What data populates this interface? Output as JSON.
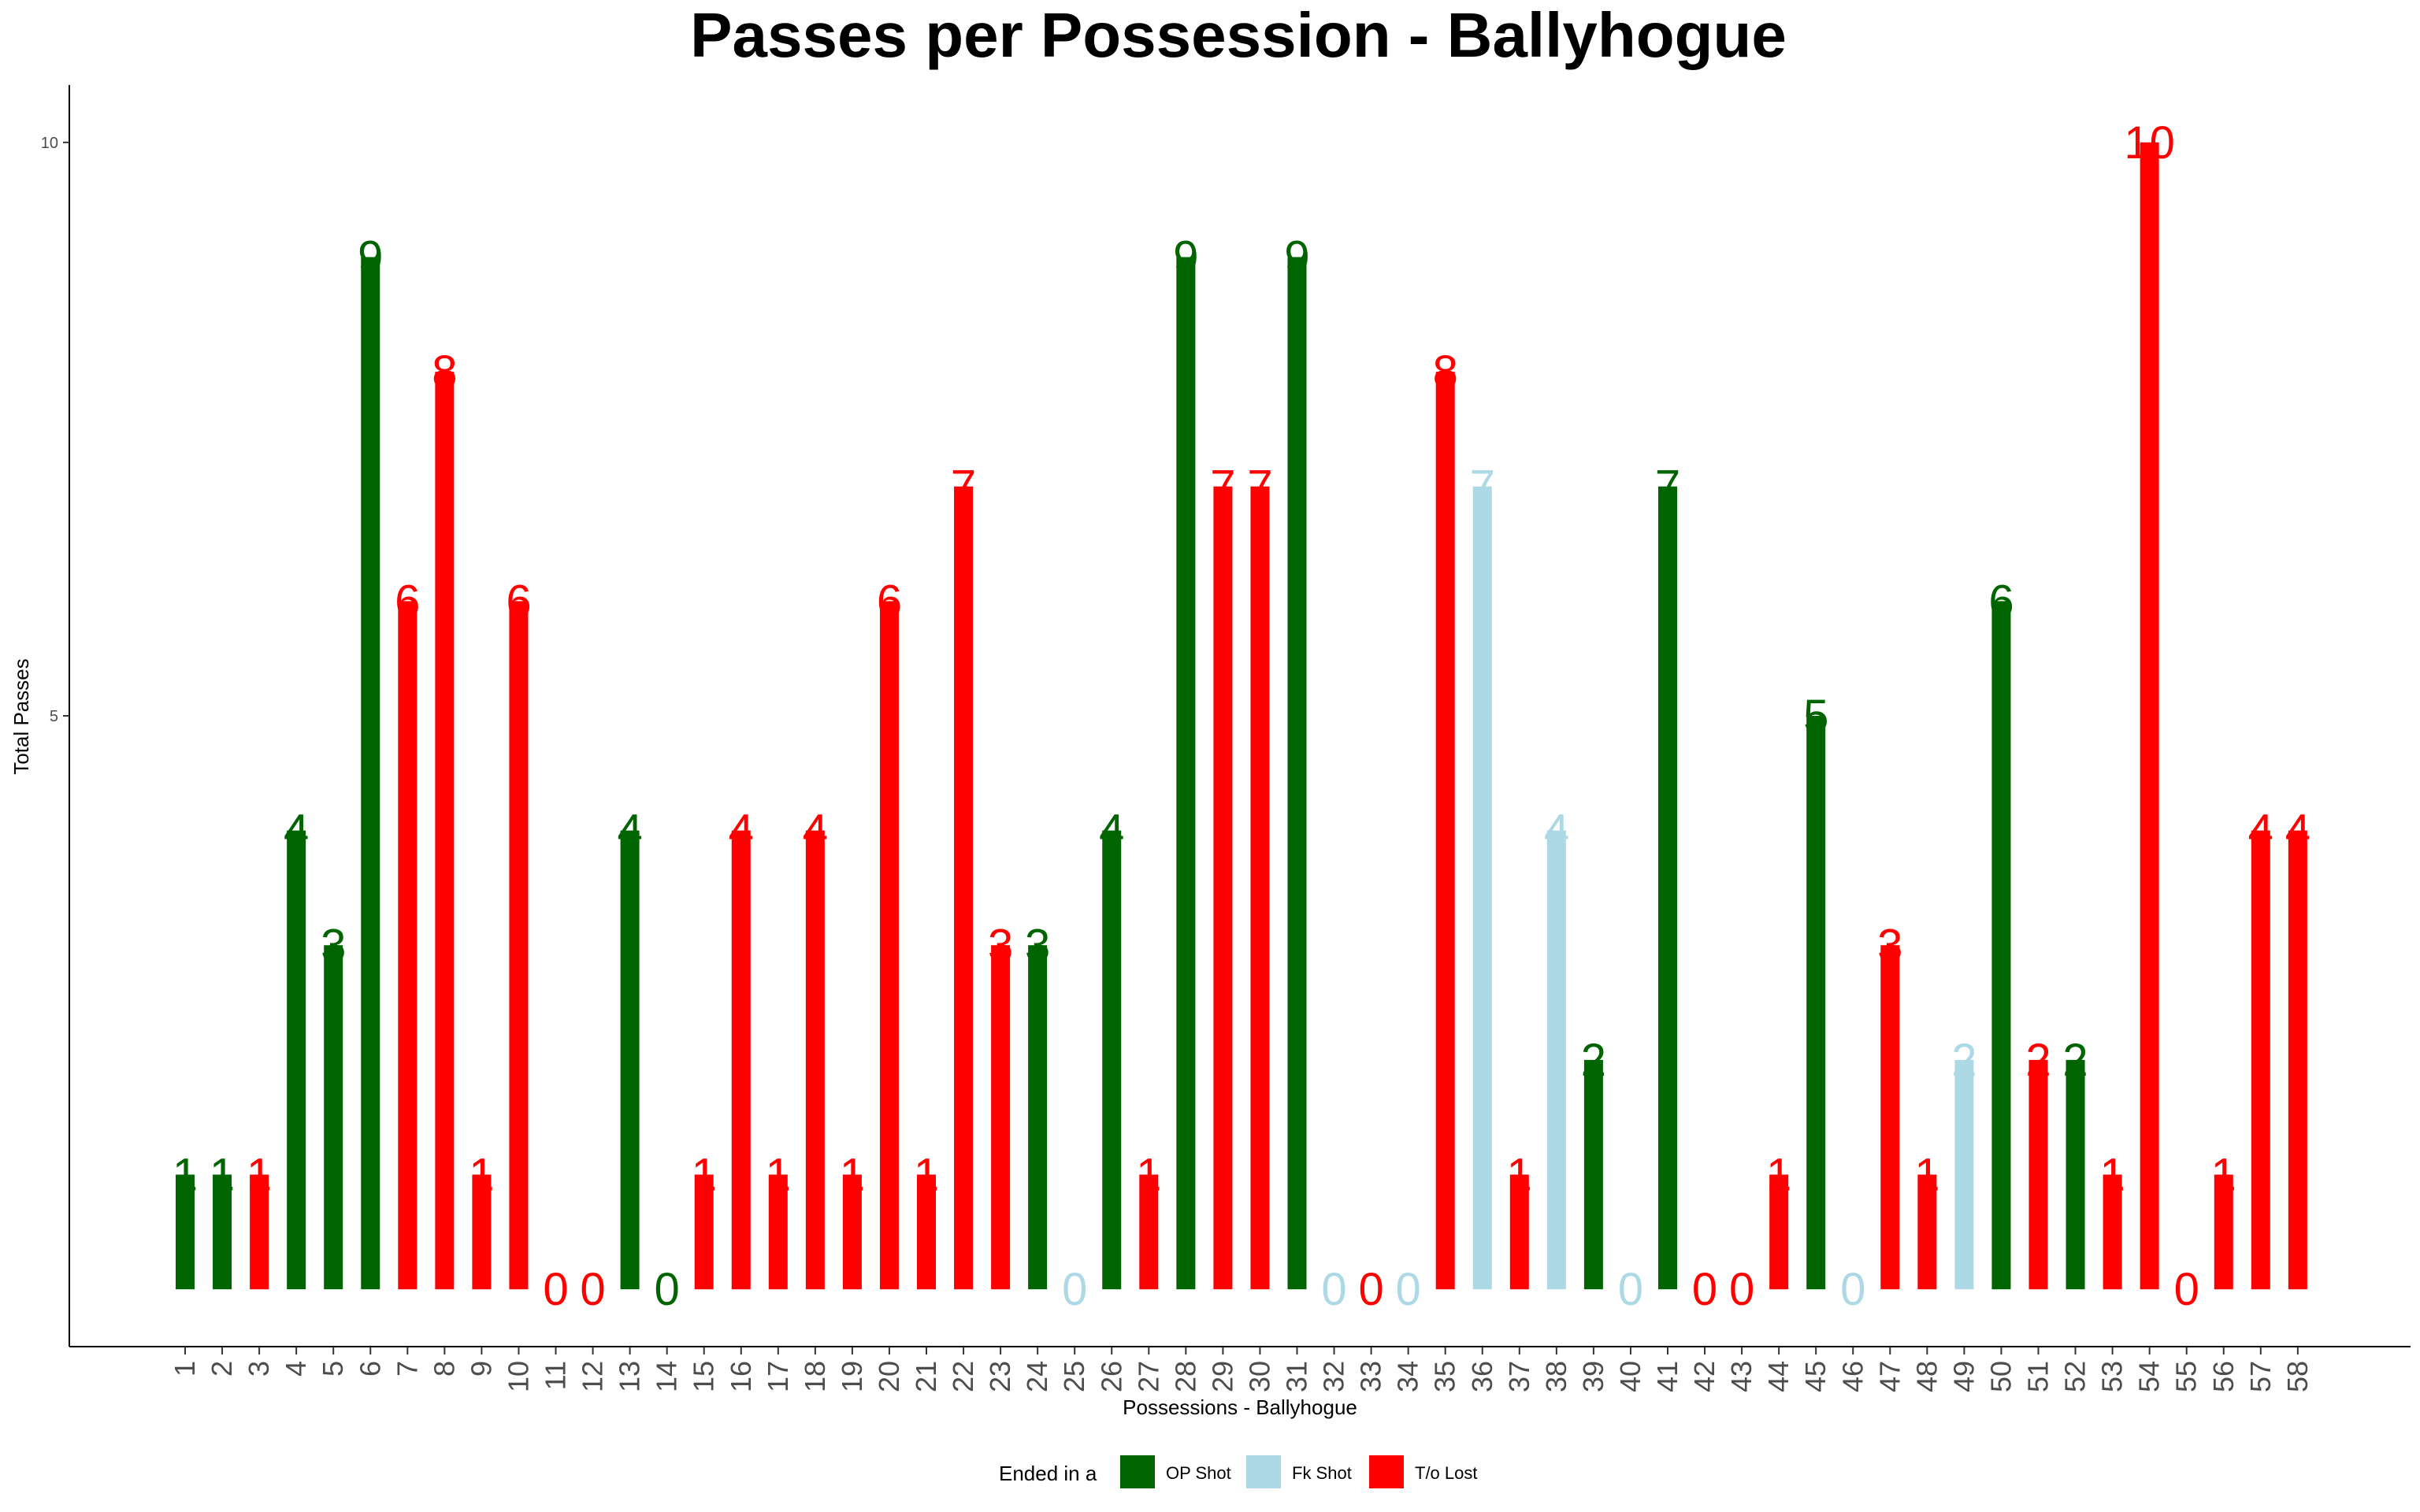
{
  "chart_data": {
    "type": "bar",
    "title": "Passes per Possession - Ballyhogue",
    "xlabel": "Possessions - Ballyhogue",
    "ylabel": "Total Passes",
    "ylim": [
      -0.5,
      10.5
    ],
    "yticks": [
      5,
      10
    ],
    "grid": false,
    "legend": {
      "title": "Ended in a",
      "placement": "bottom",
      "entries": [
        {
          "key": "op",
          "label": "OP Shot",
          "color": "#006400"
        },
        {
          "key": "fk",
          "label": "Fk Shot",
          "color": "#ADD8E6"
        },
        {
          "key": "to",
          "label": "T/o Lost",
          "color": "#FF0000"
        }
      ]
    },
    "categories": [
      "1",
      "2",
      "3",
      "4",
      "5",
      "6",
      "7",
      "8",
      "9",
      "10",
      "11",
      "12",
      "13",
      "14",
      "15",
      "16",
      "17",
      "18",
      "19",
      "20",
      "21",
      "22",
      "23",
      "24",
      "25",
      "26",
      "27",
      "28",
      "29",
      "30",
      "31",
      "32",
      "33",
      "34",
      "35",
      "36",
      "37",
      "38",
      "39",
      "40",
      "41",
      "42",
      "43",
      "44",
      "45",
      "46",
      "47",
      "48",
      "49",
      "50",
      "51",
      "52",
      "53",
      "54",
      "55",
      "56",
      "57",
      "58"
    ],
    "values": [
      1,
      1,
      1,
      4,
      3,
      9,
      6,
      8,
      1,
      6,
      0,
      0,
      4,
      0,
      1,
      4,
      1,
      4,
      1,
      6,
      1,
      7,
      3,
      3,
      0,
      4,
      1,
      9,
      7,
      7,
      9,
      0,
      0,
      0,
      8,
      7,
      1,
      4,
      2,
      0,
      7,
      0,
      0,
      1,
      5,
      0,
      3,
      1,
      2,
      6,
      2,
      2,
      1,
      10,
      0,
      1,
      4,
      4
    ],
    "outcomes": [
      "op",
      "op",
      "to",
      "op",
      "op",
      "op",
      "to",
      "to",
      "to",
      "to",
      "to",
      "to",
      "op",
      "op",
      "to",
      "to",
      "to",
      "to",
      "to",
      "to",
      "to",
      "to",
      "to",
      "op",
      "fk",
      "op",
      "to",
      "op",
      "to",
      "to",
      "op",
      "fk",
      "to",
      "fk",
      "to",
      "fk",
      "to",
      "fk",
      "op",
      "fk",
      "op",
      "to",
      "to",
      "to",
      "op",
      "fk",
      "to",
      "to",
      "fk",
      "op",
      "to",
      "op",
      "to",
      "to",
      "to",
      "to",
      "to",
      "to"
    ]
  }
}
